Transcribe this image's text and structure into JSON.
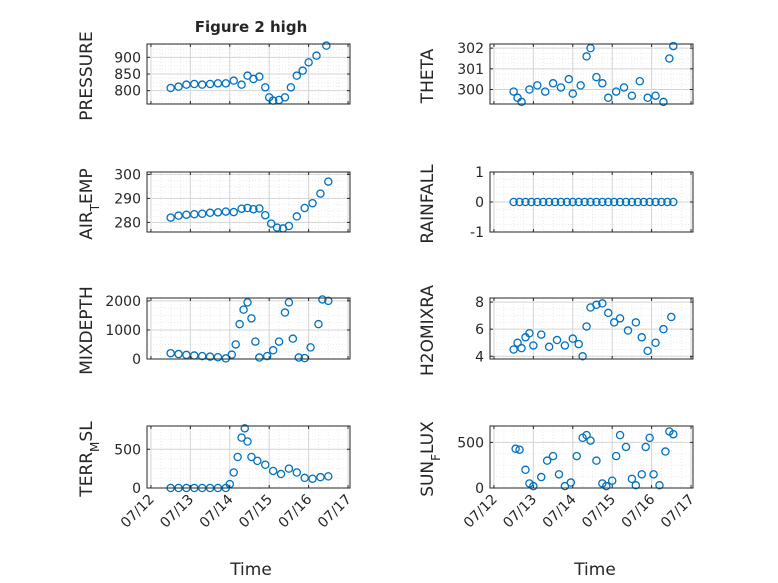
{
  "figure": {
    "title": "Figure 2 high",
    "xlabel": "Time"
  },
  "colors": {
    "marker": "#0072BD",
    "axis": "#262626",
    "grid": "#d9d9d9"
  },
  "chart_data": [
    {
      "type": "scatter",
      "ylabel": "PRESSURE",
      "yticks": [
        800,
        850,
        900
      ],
      "ylim": [
        760,
        940
      ],
      "grid": true,
      "xticks": [
        "07/12",
        "07/13",
        "07/14",
        "07/15",
        "07/16",
        "07/17"
      ],
      "xtick_labels_shown": false,
      "points": [
        [
          12.5,
          808
        ],
        [
          12.7,
          812
        ],
        [
          12.9,
          818
        ],
        [
          13.1,
          820
        ],
        [
          13.3,
          818
        ],
        [
          13.5,
          820
        ],
        [
          13.7,
          822
        ],
        [
          13.9,
          822
        ],
        [
          14.1,
          830
        ],
        [
          14.3,
          818
        ],
        [
          14.45,
          845
        ],
        [
          14.6,
          835
        ],
        [
          14.75,
          842
        ],
        [
          14.9,
          810
        ],
        [
          15.0,
          780
        ],
        [
          15.1,
          770
        ],
        [
          15.25,
          772
        ],
        [
          15.4,
          780
        ],
        [
          15.55,
          810
        ],
        [
          15.7,
          845
        ],
        [
          15.85,
          860
        ],
        [
          16.0,
          885
        ],
        [
          16.2,
          905
        ],
        [
          16.45,
          935
        ]
      ]
    },
    {
      "type": "scatter",
      "ylabel": "THETA",
      "yticks": [
        300,
        301,
        302
      ],
      "ylim": [
        299.3,
        302.2
      ],
      "grid": true,
      "xticks": [
        "07/12",
        "07/13",
        "07/14",
        "07/15",
        "07/16",
        "07/17"
      ],
      "xtick_labels_shown": false,
      "points": [
        [
          12.5,
          299.9
        ],
        [
          12.6,
          299.6
        ],
        [
          12.7,
          299.4
        ],
        [
          12.9,
          300.0
        ],
        [
          13.1,
          300.2
        ],
        [
          13.3,
          299.9
        ],
        [
          13.5,
          300.3
        ],
        [
          13.7,
          300.1
        ],
        [
          13.9,
          300.5
        ],
        [
          14.0,
          299.8
        ],
        [
          14.2,
          300.2
        ],
        [
          14.35,
          301.6
        ],
        [
          14.45,
          302.0
        ],
        [
          14.6,
          300.6
        ],
        [
          14.75,
          300.3
        ],
        [
          14.9,
          299.6
        ],
        [
          15.1,
          299.9
        ],
        [
          15.3,
          300.1
        ],
        [
          15.5,
          299.7
        ],
        [
          15.7,
          300.4
        ],
        [
          15.9,
          299.6
        ],
        [
          16.1,
          299.7
        ],
        [
          16.3,
          299.4
        ],
        [
          16.45,
          301.5
        ],
        [
          16.55,
          302.1
        ]
      ]
    },
    {
      "type": "scatter",
      "ylabel": "AIR_TEMP",
      "yticks": [
        280,
        290,
        300
      ],
      "ylim": [
        276,
        301
      ],
      "grid": true,
      "xticks": [
        "07/12",
        "07/13",
        "07/14",
        "07/15",
        "07/16",
        "07/17"
      ],
      "xtick_labels_shown": false,
      "points": [
        [
          12.5,
          282
        ],
        [
          12.7,
          282.8
        ],
        [
          12.9,
          283.2
        ],
        [
          13.1,
          283.4
        ],
        [
          13.3,
          283.6
        ],
        [
          13.5,
          284
        ],
        [
          13.7,
          284.2
        ],
        [
          13.9,
          284.5
        ],
        [
          14.1,
          284.3
        ],
        [
          14.3,
          285.7
        ],
        [
          14.45,
          286
        ],
        [
          14.6,
          285.5
        ],
        [
          14.75,
          285.8
        ],
        [
          14.9,
          283
        ],
        [
          15.05,
          279.5
        ],
        [
          15.2,
          277.8
        ],
        [
          15.35,
          277.5
        ],
        [
          15.5,
          278.5
        ],
        [
          15.7,
          282.5
        ],
        [
          15.9,
          286
        ],
        [
          16.1,
          288
        ],
        [
          16.3,
          292
        ],
        [
          16.5,
          297
        ]
      ]
    },
    {
      "type": "scatter",
      "ylabel": "RAINFALL",
      "yticks": [
        -1,
        0,
        1
      ],
      "ylim": [
        -1,
        1
      ],
      "grid": true,
      "xticks": [
        "07/12",
        "07/13",
        "07/14",
        "07/15",
        "07/16",
        "07/17"
      ],
      "xtick_labels_shown": false,
      "points": [
        [
          12.5,
          0
        ],
        [
          12.65,
          0
        ],
        [
          12.8,
          0
        ],
        [
          12.95,
          0
        ],
        [
          13.1,
          0
        ],
        [
          13.25,
          0
        ],
        [
          13.4,
          0
        ],
        [
          13.55,
          0
        ],
        [
          13.7,
          0
        ],
        [
          13.85,
          0
        ],
        [
          14.0,
          0
        ],
        [
          14.15,
          0
        ],
        [
          14.3,
          0
        ],
        [
          14.45,
          0
        ],
        [
          14.6,
          0
        ],
        [
          14.75,
          0
        ],
        [
          14.9,
          0
        ],
        [
          15.05,
          0
        ],
        [
          15.2,
          0
        ],
        [
          15.35,
          0
        ],
        [
          15.5,
          0
        ],
        [
          15.65,
          0
        ],
        [
          15.8,
          0
        ],
        [
          15.95,
          0
        ],
        [
          16.1,
          0
        ],
        [
          16.25,
          0
        ],
        [
          16.4,
          0
        ],
        [
          16.55,
          0
        ]
      ]
    },
    {
      "type": "scatter",
      "ylabel": "MIXDEPTH",
      "yticks": [
        0,
        1000,
        2000
      ],
      "ylim": [
        0,
        2100
      ],
      "grid": true,
      "xticks": [
        "07/12",
        "07/13",
        "07/14",
        "07/15",
        "07/16",
        "07/17"
      ],
      "xtick_labels_shown": false,
      "points": [
        [
          12.5,
          200
        ],
        [
          12.7,
          170
        ],
        [
          12.9,
          140
        ],
        [
          13.1,
          120
        ],
        [
          13.3,
          100
        ],
        [
          13.5,
          80
        ],
        [
          13.7,
          60
        ],
        [
          13.9,
          20
        ],
        [
          14.05,
          150
        ],
        [
          14.15,
          500
        ],
        [
          14.25,
          1200
        ],
        [
          14.35,
          1700
        ],
        [
          14.45,
          1950
        ],
        [
          14.55,
          1400
        ],
        [
          14.65,
          600
        ],
        [
          14.75,
          50
        ],
        [
          14.95,
          100
        ],
        [
          15.1,
          300
        ],
        [
          15.25,
          600
        ],
        [
          15.4,
          1600
        ],
        [
          15.5,
          1950
        ],
        [
          15.6,
          700
        ],
        [
          15.75,
          50
        ],
        [
          15.9,
          30
        ],
        [
          16.05,
          400
        ],
        [
          16.25,
          1200
        ],
        [
          16.35,
          2050
        ],
        [
          16.5,
          2000
        ]
      ]
    },
    {
      "type": "scatter",
      "ylabel": "H2OMIXRA",
      "yticks": [
        4,
        6,
        8
      ],
      "ylim": [
        3.8,
        8.3
      ],
      "grid": true,
      "xticks": [
        "07/12",
        "07/13",
        "07/14",
        "07/15",
        "07/16",
        "07/17"
      ],
      "xtick_labels_shown": false,
      "points": [
        [
          12.5,
          4.5
        ],
        [
          12.6,
          5.0
        ],
        [
          12.7,
          4.6
        ],
        [
          12.8,
          5.4
        ],
        [
          12.9,
          5.7
        ],
        [
          13.0,
          4.8
        ],
        [
          13.2,
          5.6
        ],
        [
          13.4,
          4.7
        ],
        [
          13.6,
          5.2
        ],
        [
          13.8,
          4.8
        ],
        [
          14.0,
          5.3
        ],
        [
          14.15,
          4.9
        ],
        [
          14.25,
          4.0
        ],
        [
          14.35,
          6.2
        ],
        [
          14.45,
          7.6
        ],
        [
          14.6,
          7.8
        ],
        [
          14.75,
          7.9
        ],
        [
          14.9,
          7.2
        ],
        [
          15.05,
          6.5
        ],
        [
          15.2,
          6.8
        ],
        [
          15.4,
          5.9
        ],
        [
          15.6,
          6.5
        ],
        [
          15.75,
          5.4
        ],
        [
          15.9,
          4.4
        ],
        [
          16.1,
          5.0
        ],
        [
          16.3,
          6.0
        ],
        [
          16.5,
          6.9
        ]
      ]
    },
    {
      "type": "scatter",
      "ylabel": "TERR_MSL",
      "yticks": [
        0,
        500
      ],
      "ylim": [
        0,
        800
      ],
      "grid": true,
      "xticks": [
        "07/12",
        "07/13",
        "07/14",
        "07/15",
        "07/16",
        "07/17"
      ],
      "xtick_labels_shown": true,
      "points": [
        [
          12.5,
          0
        ],
        [
          12.7,
          0
        ],
        [
          12.9,
          0
        ],
        [
          13.1,
          0
        ],
        [
          13.3,
          0
        ],
        [
          13.5,
          0
        ],
        [
          13.7,
          0
        ],
        [
          13.9,
          0
        ],
        [
          14.0,
          50
        ],
        [
          14.1,
          200
        ],
        [
          14.2,
          400
        ],
        [
          14.3,
          650
        ],
        [
          14.38,
          770
        ],
        [
          14.45,
          600
        ],
        [
          14.55,
          400
        ],
        [
          14.7,
          350
        ],
        [
          14.9,
          300
        ],
        [
          15.1,
          220
        ],
        [
          15.3,
          180
        ],
        [
          15.5,
          250
        ],
        [
          15.7,
          200
        ],
        [
          15.9,
          130
        ],
        [
          16.1,
          120
        ],
        [
          16.3,
          140
        ],
        [
          16.5,
          150
        ]
      ]
    },
    {
      "type": "scatter",
      "ylabel": "SUN_FLUX",
      "yticks": [
        0,
        500
      ],
      "ylim": [
        0,
        680
      ],
      "grid": true,
      "xticks": [
        "07/12",
        "07/13",
        "07/14",
        "07/15",
        "07/16",
        "07/17"
      ],
      "xtick_labels_shown": true,
      "points": [
        [
          12.55,
          430
        ],
        [
          12.65,
          420
        ],
        [
          12.8,
          200
        ],
        [
          12.9,
          50
        ],
        [
          13.0,
          20
        ],
        [
          13.2,
          120
        ],
        [
          13.35,
          300
        ],
        [
          13.5,
          350
        ],
        [
          13.65,
          150
        ],
        [
          13.8,
          20
        ],
        [
          13.95,
          60
        ],
        [
          14.1,
          350
        ],
        [
          14.25,
          550
        ],
        [
          14.35,
          580
        ],
        [
          14.45,
          520
        ],
        [
          14.6,
          300
        ],
        [
          14.75,
          50
        ],
        [
          14.85,
          20
        ],
        [
          15.0,
          80
        ],
        [
          15.1,
          350
        ],
        [
          15.2,
          580
        ],
        [
          15.35,
          450
        ],
        [
          15.5,
          100
        ],
        [
          15.6,
          30
        ],
        [
          15.75,
          150
        ],
        [
          15.85,
          450
        ],
        [
          15.95,
          550
        ],
        [
          16.05,
          150
        ],
        [
          16.2,
          30
        ],
        [
          16.35,
          400
        ],
        [
          16.45,
          620
        ],
        [
          16.55,
          590
        ]
      ]
    }
  ]
}
